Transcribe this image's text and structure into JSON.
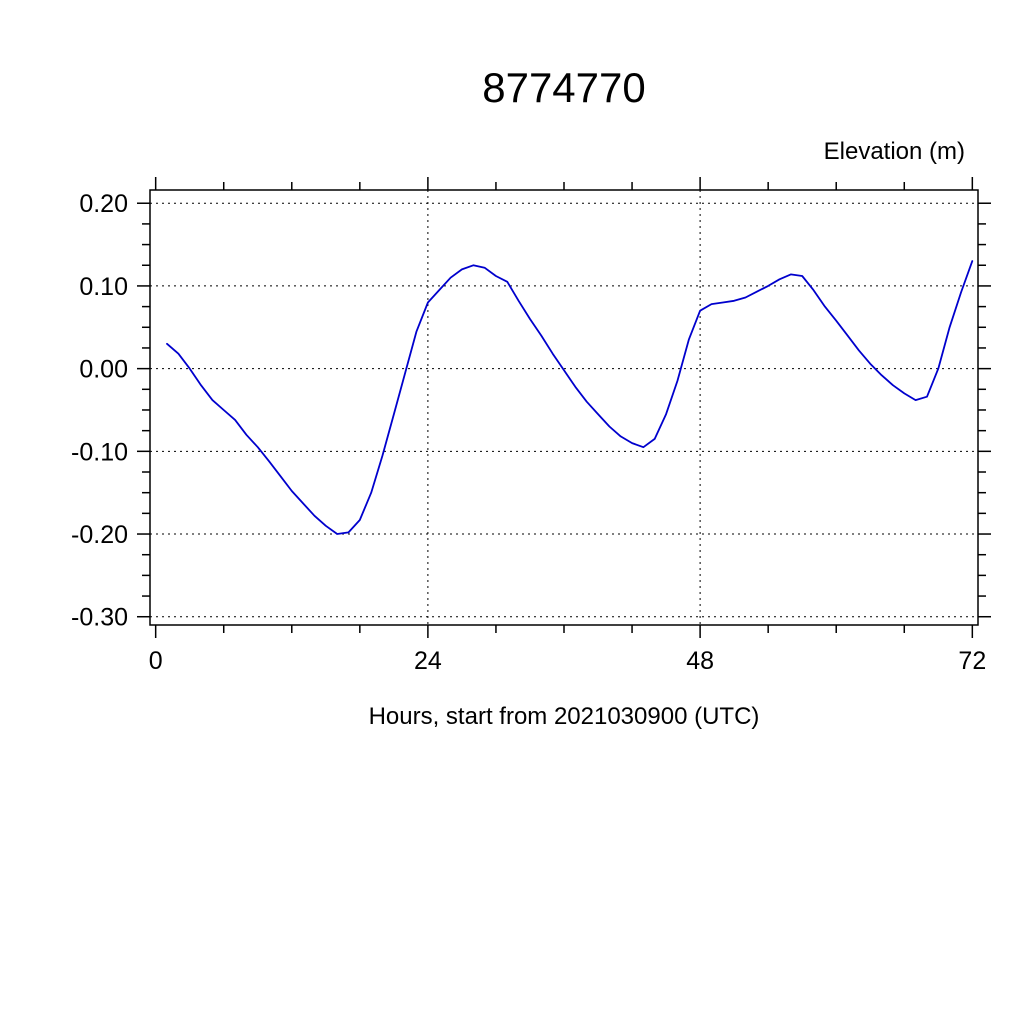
{
  "chart_data": {
    "type": "line",
    "title": "8774770",
    "unit_label": "Elevation (m)",
    "xlabel": "Hours, start from 2021030900 (UTC)",
    "line_color": "#0000cd",
    "grid": true,
    "legend": "none",
    "xlim": [
      -0.5,
      72.5
    ],
    "ylim": [
      -0.31,
      0.216
    ],
    "xticks": [
      {
        "value": 0,
        "label": "0"
      },
      {
        "value": 24,
        "label": "24"
      },
      {
        "value": 48,
        "label": "48"
      },
      {
        "value": 72,
        "label": "72"
      }
    ],
    "yticks": [
      {
        "value": 0.2,
        "label": "0.20"
      },
      {
        "value": 0.1,
        "label": "0.10"
      },
      {
        "value": 0.0,
        "label": "0.00"
      },
      {
        "value": -0.1,
        "label": "-0.10"
      },
      {
        "value": -0.2,
        "label": "-0.20"
      },
      {
        "value": -0.3,
        "label": "-0.30"
      }
    ],
    "x_minor_ticks": [
      6,
      12,
      18,
      30,
      36,
      42,
      54,
      60,
      66
    ],
    "y_minor_ticks": [
      0.175,
      0.15,
      0.125,
      0.075,
      0.05,
      0.025,
      -0.025,
      -0.05,
      -0.075,
      -0.125,
      -0.15,
      -0.175,
      -0.225,
      -0.25,
      -0.275
    ],
    "series": [
      {
        "name": "elevation",
        "x": [
          1,
          2,
          3,
          4,
          5,
          6,
          7,
          8,
          9,
          10,
          11,
          12,
          13,
          14,
          15,
          16,
          17,
          18,
          19,
          20,
          21,
          22,
          23,
          24,
          25,
          26,
          27,
          28,
          29,
          30,
          31,
          32,
          33,
          34,
          35,
          36,
          37,
          38,
          39,
          40,
          41,
          42,
          43,
          44,
          45,
          46,
          47,
          48,
          49,
          50,
          51,
          52,
          53,
          54,
          55,
          56,
          57,
          58,
          59,
          60,
          61,
          62,
          63,
          64,
          65,
          66,
          67,
          68,
          69,
          70,
          71,
          72
        ],
        "values": [
          0.03,
          0.018,
          0.0,
          -0.02,
          -0.038,
          -0.05,
          -0.062,
          -0.08,
          -0.095,
          -0.112,
          -0.13,
          -0.148,
          -0.163,
          -0.178,
          -0.19,
          -0.2,
          -0.198,
          -0.183,
          -0.15,
          -0.105,
          -0.055,
          -0.005,
          0.045,
          0.08,
          0.095,
          0.11,
          0.12,
          0.125,
          0.122,
          0.112,
          0.105,
          0.082,
          0.06,
          0.04,
          0.018,
          -0.002,
          -0.022,
          -0.04,
          -0.055,
          -0.07,
          -0.082,
          -0.09,
          -0.095,
          -0.085,
          -0.055,
          -0.015,
          0.035,
          0.07,
          0.078,
          0.08,
          0.082,
          0.086,
          0.093,
          0.1,
          0.108,
          0.114,
          0.112,
          0.095,
          0.075,
          0.058,
          0.04,
          0.022,
          0.006,
          -0.008,
          -0.02,
          -0.03,
          -0.038,
          -0.034,
          0.0,
          0.05,
          0.092,
          0.13
        ]
      }
    ]
  }
}
